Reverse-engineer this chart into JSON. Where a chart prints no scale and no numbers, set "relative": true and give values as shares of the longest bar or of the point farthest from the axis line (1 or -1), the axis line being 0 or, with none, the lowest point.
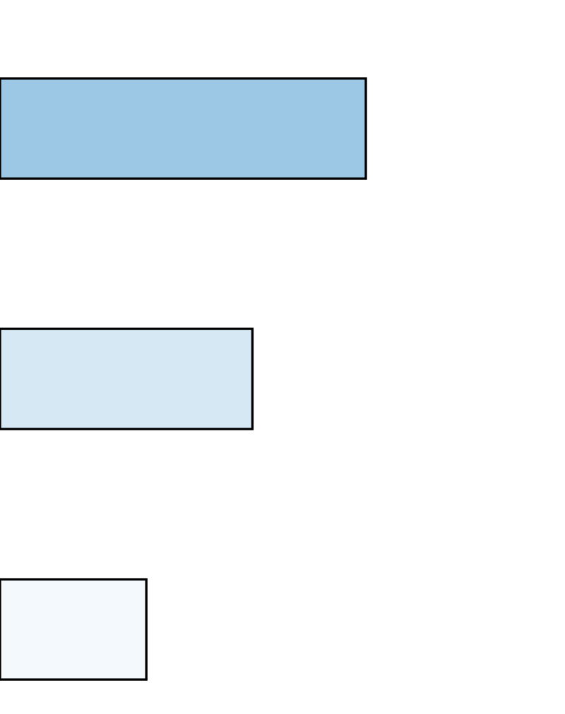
{
  "chart_data": {
    "type": "bar",
    "orientation": "horizontal",
    "relative": true,
    "categories": [
      null,
      null,
      null
    ],
    "values": [
      1,
      0.69,
      0.4
    ],
    "colors": [
      "#9cc8e5",
      "#d5e8f4",
      "#f3f9fd"
    ]
  }
}
